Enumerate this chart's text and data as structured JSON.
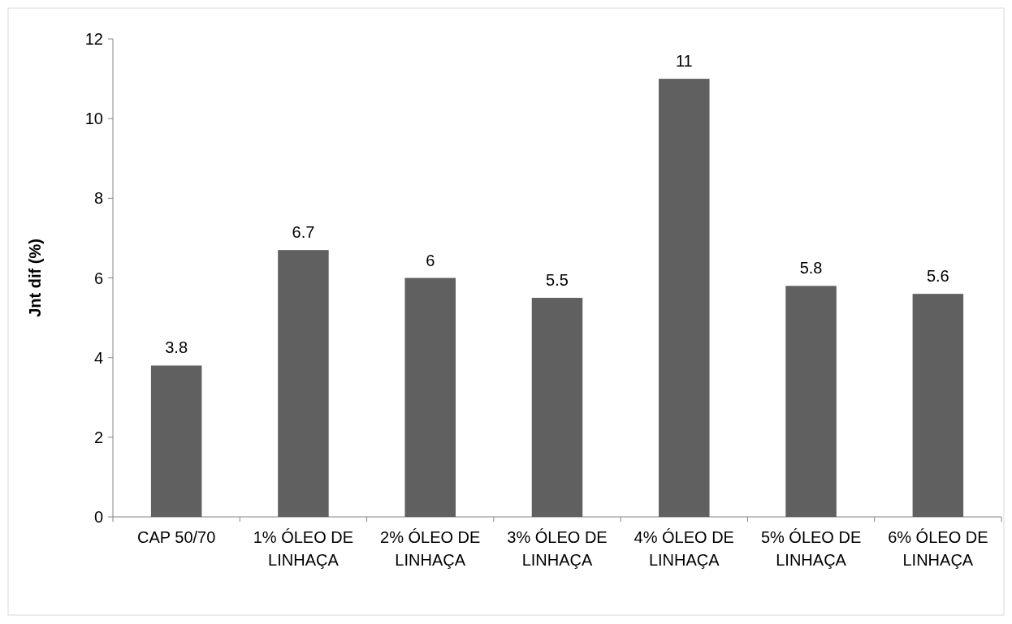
{
  "chart_data": {
    "type": "bar",
    "ylabel": "Jnt dif (%)",
    "categories": [
      "CAP 50/70",
      "1% ÓLEO DE LINHAÇA",
      "2% ÓLEO DE LINHAÇA",
      "3% ÓLEO DE LINHAÇA",
      "4% ÓLEO DE LINHAÇA",
      "5% ÓLEO DE LINHAÇA",
      "6% ÓLEO DE LINHAÇA"
    ],
    "values": [
      3.8,
      6.7,
      6,
      5.5,
      11,
      5.8,
      5.6
    ],
    "color": "#606060",
    "ylim": [
      0,
      12
    ],
    "yticks": [
      0,
      2,
      4,
      6,
      8,
      10,
      12
    ],
    "grid": false,
    "data_labels": true
  }
}
